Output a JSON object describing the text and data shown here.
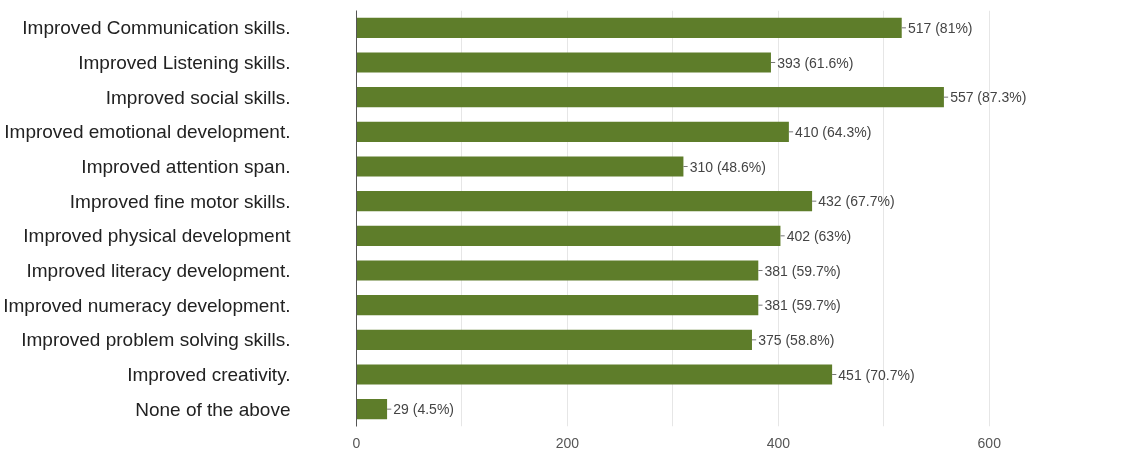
{
  "chart_data": {
    "type": "bar",
    "orientation": "horizontal",
    "categories": [
      "Improved Communication skills.",
      "Improved Listening skills.",
      "Improved social skills.",
      "Improved emotional development.",
      "Improved attention span.",
      "Improved fine motor skills.",
      "Improved physical development",
      "Improved literacy development.",
      "Improved numeracy development.",
      "Improved problem solving skills.",
      "Improved creativity.",
      "None of the above"
    ],
    "values": [
      517,
      393,
      557,
      410,
      310,
      432,
      402,
      381,
      381,
      375,
      451,
      29
    ],
    "value_labels": [
      "517 (81%)",
      "393 (61.6%)",
      "557 (87.3%)",
      "410 (64.3%)",
      "310 (48.6%)",
      "432 (67.7%)",
      "402 (63%)",
      "381 (59.7%)",
      "381 (59.7%)",
      "375 (58.8%)",
      "451 (70.7%)",
      "29 (4.5%)"
    ],
    "color": "#5e7d2a",
    "xlim": [
      0,
      600
    ],
    "xticks": [
      0,
      {
        "value": 100,
        "label": null
      },
      200,
      {
        "value": 300,
        "label": null
      },
      400,
      {
        "value": 500,
        "label": null
      },
      600
    ],
    "grid": "x"
  }
}
